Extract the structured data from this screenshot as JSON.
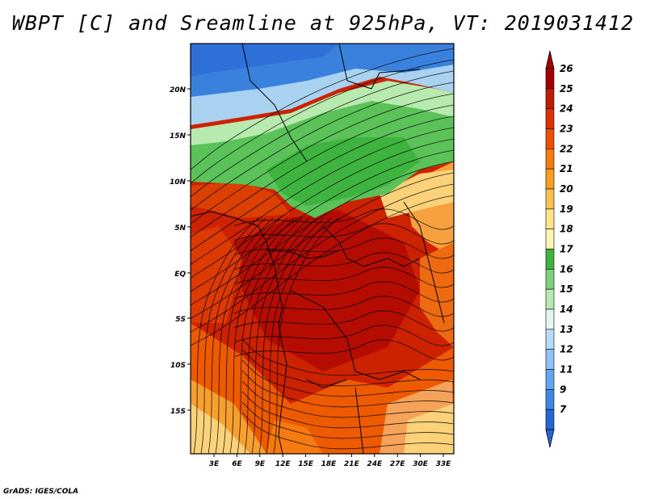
{
  "title": "WBPT [C] and Sreamline at 925hPa, VT: 2019031412",
  "footer": "GrADS: IGES/COLA",
  "map": {
    "lat_labels": [
      "20N",
      "15N",
      "10N",
      "5N",
      "EQ",
      "5S",
      "10S",
      "15S"
    ],
    "lon_labels": [
      "3E",
      "6E",
      "9E",
      "12E",
      "15E",
      "18E",
      "21E",
      "24E",
      "27E",
      "30E",
      "33E"
    ]
  },
  "colorbar": {
    "labels": [
      "26",
      "25",
      "24",
      "23",
      "22",
      "21",
      "20",
      "19",
      "18",
      "17",
      "16",
      "15",
      "14",
      "13",
      "12",
      "11",
      "9",
      "7"
    ],
    "colors": [
      "#a50000",
      "#c01c00",
      "#dc3000",
      "#ee5000",
      "#f57a10",
      "#fa9e20",
      "#fbc050",
      "#fde38a",
      "#fdf5b4",
      "#3fb33f",
      "#7ed07a",
      "#b8eab0",
      "#e4f6f3",
      "#b8dcf8",
      "#8fc3f4",
      "#62a6ee",
      "#3c88e4",
      "#2466d6"
    ]
  }
}
